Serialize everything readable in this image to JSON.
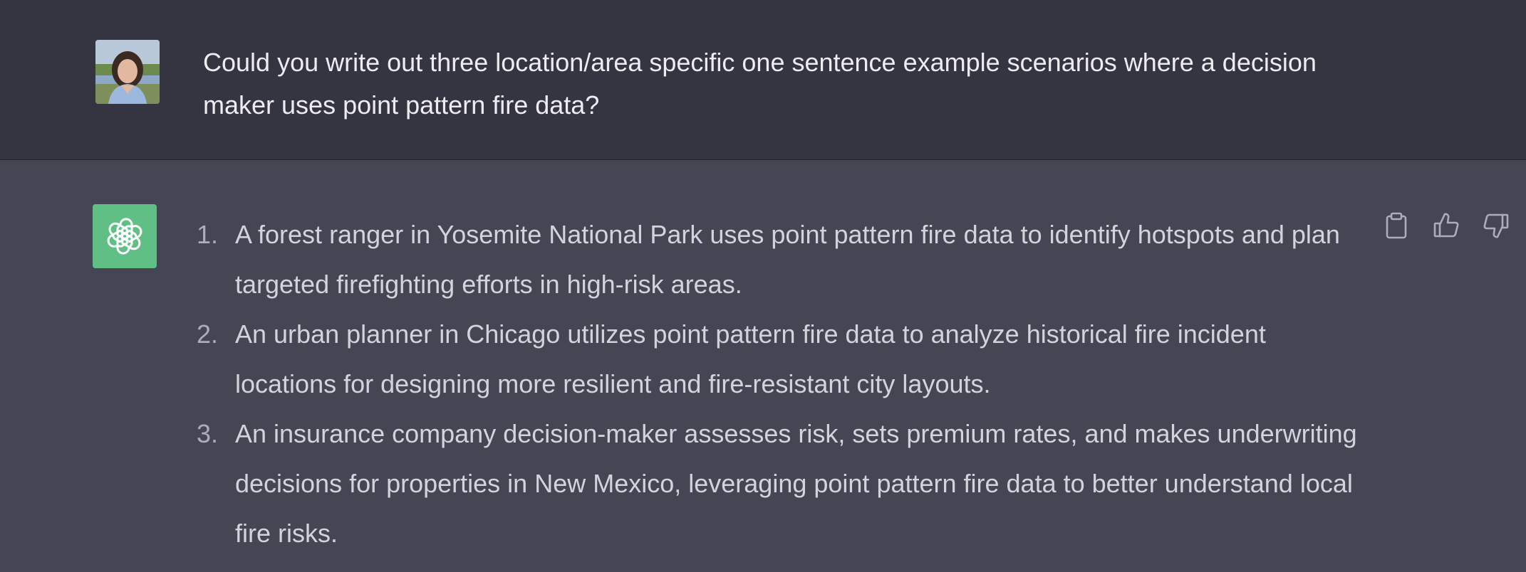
{
  "user_message": {
    "avatar": "user-photo-avatar",
    "text": "Could you write out three location/area specific one sentence example scenarios where a decision maker uses point pattern fire data?"
  },
  "assistant_message": {
    "avatar": "openai-logo-icon",
    "items": [
      {
        "num": "1.",
        "text": "A forest ranger in Yosemite National Park uses point pattern fire data to identify hotspots and plan targeted firefighting efforts in high-risk areas."
      },
      {
        "num": "2.",
        "text": "An urban planner in Chicago utilizes point pattern fire data to analyze historical fire incident locations for designing more resilient and fire-resistant city layouts."
      },
      {
        "num": "3.",
        "text": "An insurance company decision-maker assesses risk, sets premium rates, and makes underwriting decisions for properties in New Mexico, leveraging point pattern fire data to better understand local fire risks."
      }
    ],
    "actions": [
      "clipboard-icon",
      "thumbs-up-icon",
      "thumbs-down-icon"
    ]
  },
  "colors": {
    "user_bg": "#343541",
    "assistant_bg": "#444654",
    "bot_avatar_bg": "#5fbf85",
    "text_primary": "#ececf1",
    "text_secondary": "#d1d5db"
  }
}
